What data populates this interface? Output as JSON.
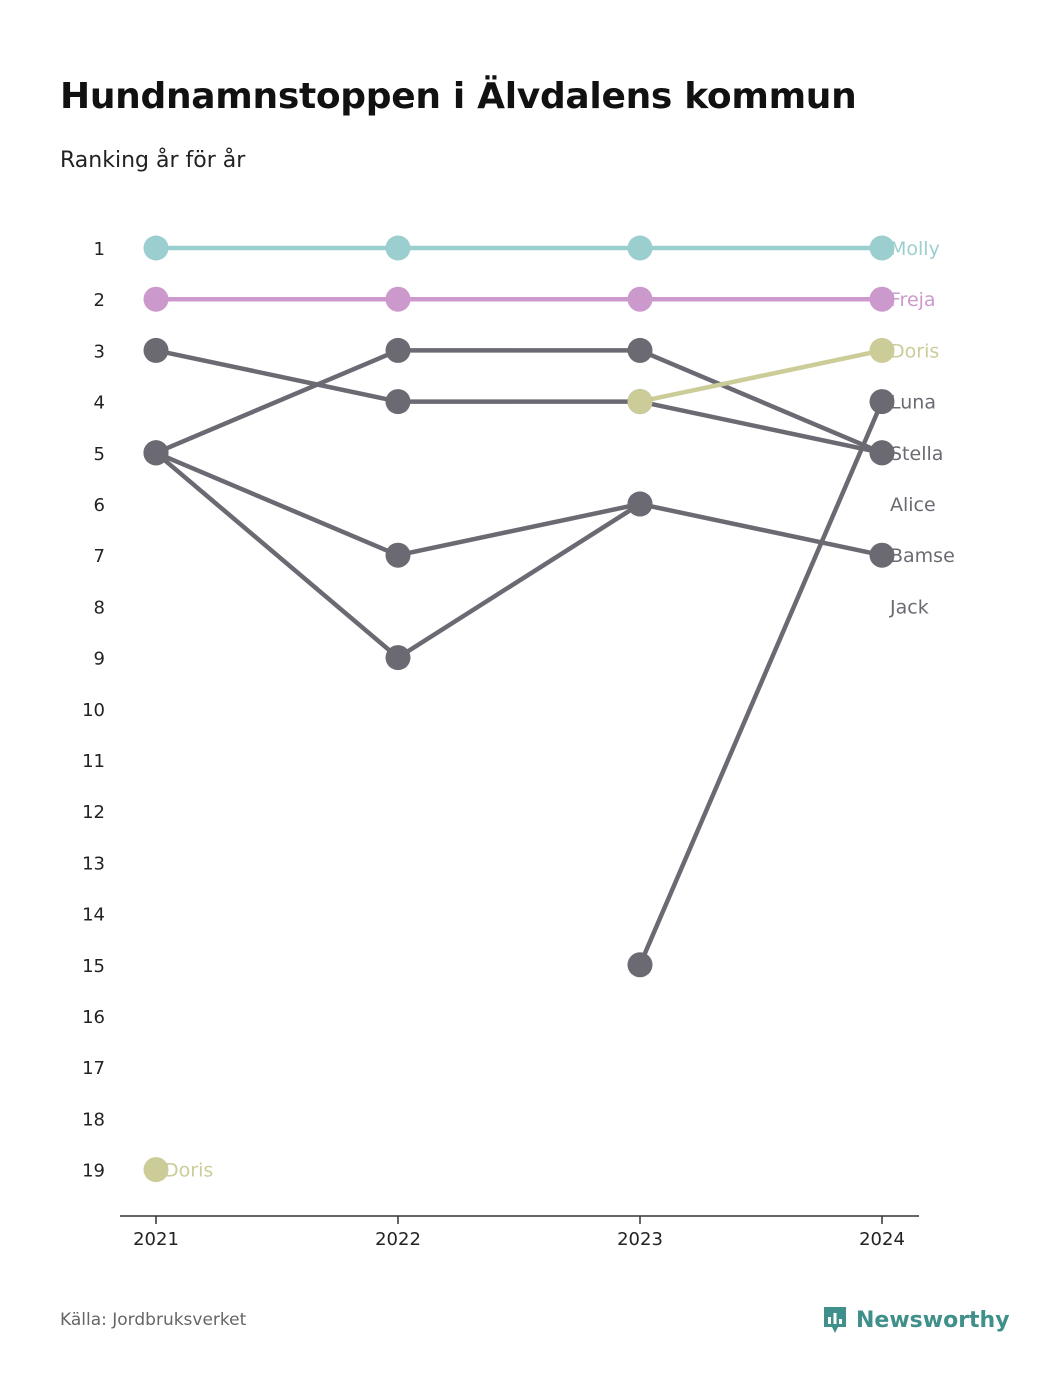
{
  "title": "Hundnamnstoppen i Älvdalens kommun",
  "subtitle": "Ranking år för år",
  "source": "Källa: Jordbruksverket",
  "brand": {
    "name": "Newsworthy",
    "icon": "newsworthy-logo-icon",
    "color": "#3f8f8a"
  },
  "chart_data": {
    "type": "line",
    "title": "Hundnamnstoppen i Älvdalens kommun",
    "subtitle": "Ranking år för år",
    "x": [
      "2021",
      "2022",
      "2023",
      "2024"
    ],
    "y_ticks": [
      "1",
      "2",
      "3",
      "4",
      "5",
      "6",
      "7",
      "8",
      "9",
      "10",
      "11",
      "12",
      "13",
      "14",
      "15",
      "16",
      "17",
      "18",
      "19"
    ],
    "ylim": [
      1,
      19
    ],
    "y_inverted": true,
    "grid": false,
    "series": [
      {
        "name": "Molly",
        "values": [
          1,
          1,
          1,
          1
        ],
        "color": "#9bcfcf",
        "highlight": true,
        "label_2024": true
      },
      {
        "name": "Freja",
        "values": [
          2,
          2,
          2,
          2
        ],
        "color": "#cc99cc",
        "highlight": true,
        "label_2024": true
      },
      {
        "name": "Doris",
        "values": [
          19,
          null,
          4,
          3
        ],
        "color": "#cccc99",
        "highlight": true,
        "label_2024": true,
        "label_2021": true
      },
      {
        "name": "Luna",
        "values": [
          null,
          null,
          15,
          4
        ],
        "color": "#6b6a72",
        "highlight": false,
        "label_2024": true
      },
      {
        "name": "Stella",
        "values": [
          3,
          4,
          4,
          5
        ],
        "color": "#6b6a72",
        "highlight": false,
        "label_2024": true
      },
      {
        "name": "Alice",
        "values": [
          5,
          3,
          3,
          5
        ],
        "color": "#6b6a72",
        "highlight": false,
        "label_2024": true
      },
      {
        "name": "Bamse",
        "values": [
          5,
          7,
          6,
          7
        ],
        "color": "#6b6a72",
        "highlight": false,
        "label_2024": true
      },
      {
        "name": "Jack",
        "values": [
          5,
          9,
          6,
          null
        ],
        "color": "#6b6a72",
        "highlight": false,
        "label_2024": true
      }
    ]
  }
}
